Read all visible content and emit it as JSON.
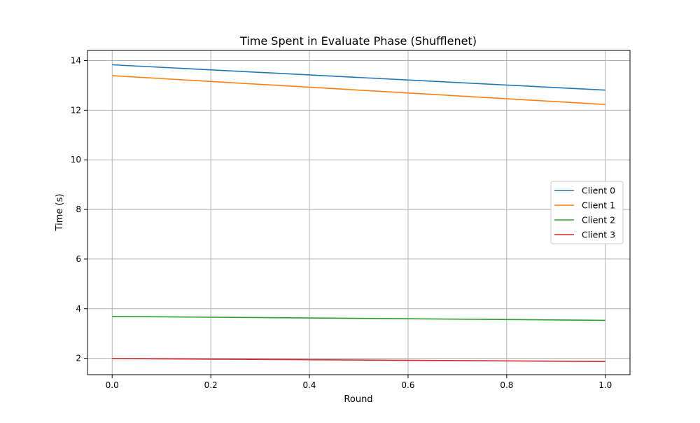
{
  "chart_data": {
    "type": "line",
    "title": "Time Spent in Evaluate Phase (Shufflenet)",
    "xlabel": "Round",
    "ylabel": "Time (s)",
    "xlim": [
      -0.05,
      1.05
    ],
    "ylim": [
      1.34,
      14.41
    ],
    "x": [
      0,
      1
    ],
    "xticks": [
      0.0,
      0.2,
      0.4,
      0.6,
      0.8,
      1.0
    ],
    "xtick_labels": [
      "0.0",
      "0.2",
      "0.4",
      "0.6",
      "0.8",
      "1.0"
    ],
    "yticks": [
      2,
      4,
      6,
      8,
      10,
      12,
      14
    ],
    "ytick_labels": [
      "2",
      "4",
      "6",
      "8",
      "10",
      "12",
      "14"
    ],
    "grid": true,
    "legend_position": "center-right",
    "series": [
      {
        "name": "Client 0",
        "color": "#1f77b4",
        "values": [
          13.83,
          12.81
        ]
      },
      {
        "name": "Client 1",
        "color": "#ff7f0e",
        "values": [
          13.39,
          12.23
        ]
      },
      {
        "name": "Client 2",
        "color": "#2ca02c",
        "values": [
          3.69,
          3.53
        ]
      },
      {
        "name": "Client 3",
        "color": "#d62728",
        "values": [
          1.99,
          1.87
        ]
      }
    ]
  }
}
